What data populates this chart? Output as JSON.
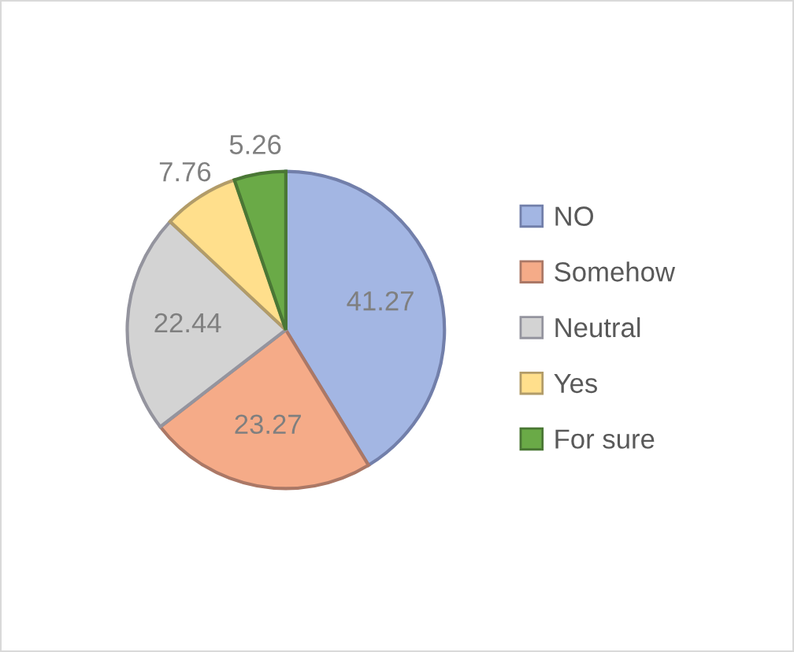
{
  "chart_data": {
    "type": "pie",
    "categories": [
      "NO",
      "Somehow",
      "Neutral",
      "Yes",
      "For sure"
    ],
    "values": [
      41.27,
      23.27,
      22.44,
      7.76,
      5.26
    ],
    "colors": [
      "#a3b6e3",
      "#f5ab88",
      "#d3d3d3",
      "#ffdf8c",
      "#6aaa47"
    ],
    "data_labels": true,
    "legend": "right"
  }
}
